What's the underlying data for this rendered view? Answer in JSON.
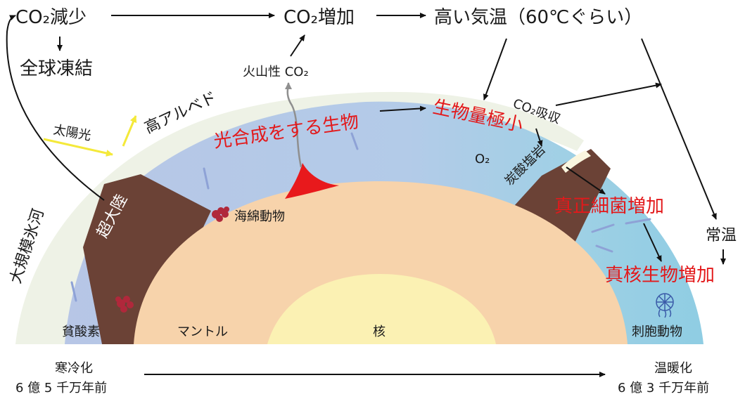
{
  "top_flow": {
    "co2_decrease": "CO₂減少",
    "co2_increase": "CO₂増加",
    "high_temperature": "高い気温（60℃ぐらい）"
  },
  "global_freeze": "全球凍結",
  "volcanic_co2": "火山性 CO₂",
  "high_albedo": "高アルベド",
  "sunlight": "太陽光",
  "photosynthetic_life": "光合成をする生物",
  "minimal_biomass": "生物量極小",
  "co2_absorption": "CO₂吸収",
  "o2": "O₂",
  "carbonate_rock": "炭酸塩岩",
  "supercontinent": "超大陸",
  "sponges": "海綿動物",
  "large_glaciers": "大規模氷河",
  "eukaryotic_bacteria_increase": "真正細菌増加",
  "eukaryote_increase": "真核生物増加",
  "normal_temperature": "常温",
  "anoxia": "貧酸素",
  "mantle": "マントル",
  "core": "核",
  "cnidarians": "刺胞動物",
  "timeline": {
    "start_label": "寒冷化",
    "start_time": "6 億 5 千万年前",
    "end_label": "温暖化",
    "end_time": "6 億 3 千万年前"
  },
  "colors": {
    "ocean_cold": "#b9cce8",
    "ocean_warm": "#8fcde3",
    "ice": "#eef2e6",
    "continent": "#6b4236",
    "mantle": "#f7d3ab",
    "core": "#fbf1b3",
    "magma": "#e8191c",
    "label_red": "#e3191b",
    "sunlight": "#f7ee3a"
  }
}
